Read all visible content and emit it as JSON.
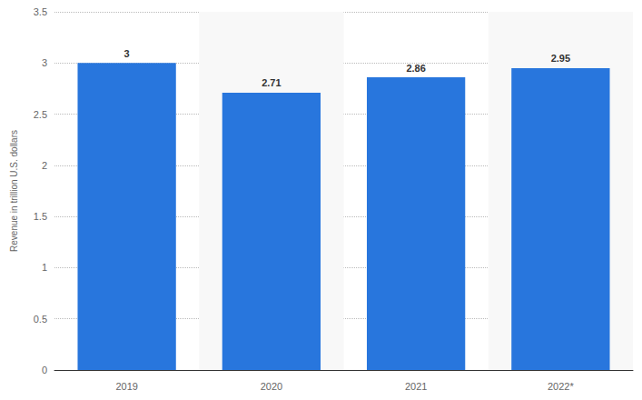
{
  "chart_data": {
    "type": "bar",
    "y_label": "Revenue in trillion U.S. dollars",
    "categories": [
      "2019",
      "2020",
      "2021",
      "2022*"
    ],
    "values": [
      3,
      2.71,
      2.86,
      2.95
    ],
    "color": "#2876dd",
    "ylim": [
      0,
      3.5
    ],
    "yticks": [
      0,
      0.5,
      1,
      1.5,
      2,
      2.5,
      3,
      3.5
    ],
    "grid": true,
    "data_labels": true
  }
}
